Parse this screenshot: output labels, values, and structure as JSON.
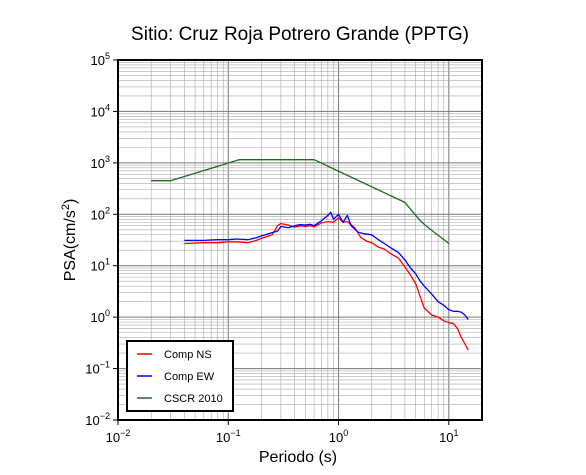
{
  "chart_data": {
    "type": "line",
    "title": "Sitio: Cruz Roja Potrero Grande (PPTG)",
    "xlabel": "Periodo (s)",
    "ylabel_main": "PSA(cm/s",
    "ylabel_sup": "2",
    "ylabel_close": ")",
    "x_scale": "log",
    "y_scale": "log",
    "xlim": [
      0.01,
      20
    ],
    "ylim": [
      0.01,
      100000
    ],
    "x_ticks": [
      {
        "value": 0.01,
        "base": "10",
        "exp": "−2"
      },
      {
        "value": 0.1,
        "base": "10",
        "exp": "−1"
      },
      {
        "value": 1,
        "base": "10",
        "exp": "0"
      },
      {
        "value": 10,
        "base": "10",
        "exp": "1"
      }
    ],
    "y_ticks": [
      {
        "value": 0.01,
        "base": "10",
        "exp": "−2"
      },
      {
        "value": 0.1,
        "base": "10",
        "exp": "−1"
      },
      {
        "value": 1,
        "base": "10",
        "exp": "0"
      },
      {
        "value": 10,
        "base": "10",
        "exp": "1"
      },
      {
        "value": 100,
        "base": "10",
        "exp": "2"
      },
      {
        "value": 1000,
        "base": "10",
        "exp": "3"
      },
      {
        "value": 10000,
        "base": "10",
        "exp": "4"
      },
      {
        "value": 100000,
        "base": "10",
        "exp": "5"
      }
    ],
    "grid": true,
    "legend_position": "bottom-left",
    "series": [
      {
        "name": "Comp NS",
        "color": "#ff0000",
        "x": [
          0.04,
          0.06,
          0.08,
          0.1,
          0.12,
          0.15,
          0.18,
          0.2,
          0.25,
          0.28,
          0.3,
          0.35,
          0.4,
          0.45,
          0.5,
          0.55,
          0.6,
          0.7,
          0.8,
          0.9,
          1.0,
          1.1,
          1.2,
          1.4,
          1.6,
          1.8,
          2.0,
          2.3,
          2.6,
          3.0,
          3.5,
          4.0,
          4.5,
          5.0,
          5.5,
          6.0,
          7.0,
          8.0,
          9.0,
          10.0,
          11.0,
          12.0,
          13.0,
          14.0,
          15.0
        ],
        "y": [
          27,
          28,
          28,
          29,
          29,
          28,
          31,
          34,
          40,
          60,
          66,
          62,
          56,
          60,
          58,
          60,
          57,
          68,
          72,
          70,
          85,
          70,
          72,
          55,
          35,
          30,
          28,
          23,
          21,
          17,
          14,
          9.5,
          6.5,
          4.5,
          2.5,
          1.5,
          1.1,
          1.0,
          0.85,
          0.78,
          0.75,
          0.6,
          0.4,
          0.3,
          0.23
        ]
      },
      {
        "name": "Comp EW",
        "color": "#0000ff",
        "x": [
          0.04,
          0.06,
          0.08,
          0.1,
          0.12,
          0.15,
          0.18,
          0.2,
          0.25,
          0.28,
          0.3,
          0.35,
          0.4,
          0.45,
          0.5,
          0.55,
          0.6,
          0.7,
          0.8,
          0.85,
          0.9,
          1.0,
          1.1,
          1.2,
          1.3,
          1.5,
          1.7,
          2.0,
          2.3,
          2.6,
          3.0,
          3.5,
          4.0,
          4.5,
          5.0,
          5.5,
          6.0,
          7.0,
          8.0,
          9.0,
          10.0,
          11.0,
          12.0,
          13.0,
          14.0,
          15.0
        ],
        "y": [
          31,
          31,
          32,
          32,
          33,
          32,
          35,
          38,
          44,
          47,
          58,
          55,
          60,
          63,
          62,
          64,
          60,
          75,
          95,
          110,
          80,
          100,
          70,
          95,
          60,
          45,
          42,
          40,
          32,
          27,
          22,
          18,
          13,
          9,
          7,
          5,
          4,
          2.8,
          2.0,
          1.7,
          1.4,
          1.3,
          1.3,
          1.25,
          1.1,
          0.9
        ]
      },
      {
        "name": "CSCR 2010",
        "color": "#1f6b1f",
        "x": [
          0.02,
          0.03,
          0.125,
          0.6,
          4.0,
          5.5,
          6.5,
          10.0
        ],
        "y": [
          450,
          450,
          1150,
          1150,
          170,
          75,
          55,
          27
        ]
      }
    ]
  }
}
